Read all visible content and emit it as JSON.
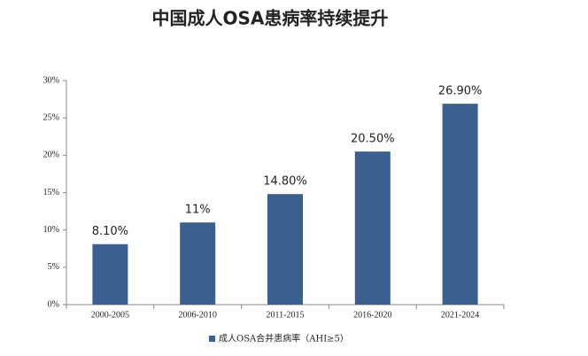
{
  "chart_data": {
    "type": "bar",
    "title": "中国成人OSA患病率持续提升",
    "categories": [
      "2000-2005",
      "2006-2010",
      "2011-2015",
      "2016-2020",
      "2021-2024"
    ],
    "series": [
      {
        "name": "成人OSA合并患病率（AHI≥5）",
        "color": "#3b5f8e",
        "values": [
          8.1,
          11,
          14.8,
          20.5,
          26.9
        ],
        "value_labels": [
          "8.10%",
          "11%",
          "14.80%",
          "20.50%",
          "26.90%"
        ]
      }
    ],
    "ylim": [
      0,
      30
    ],
    "yticks": [
      {
        "value": 0,
        "label": "0%"
      },
      {
        "value": 5,
        "label": "5%"
      },
      {
        "value": 10,
        "label": "10%"
      },
      {
        "value": 15,
        "label": "15%"
      },
      {
        "value": 20,
        "label": "20%"
      },
      {
        "value": 25,
        "label": "25%"
      },
      {
        "value": 30,
        "label": "30%"
      }
    ],
    "grid": false
  }
}
